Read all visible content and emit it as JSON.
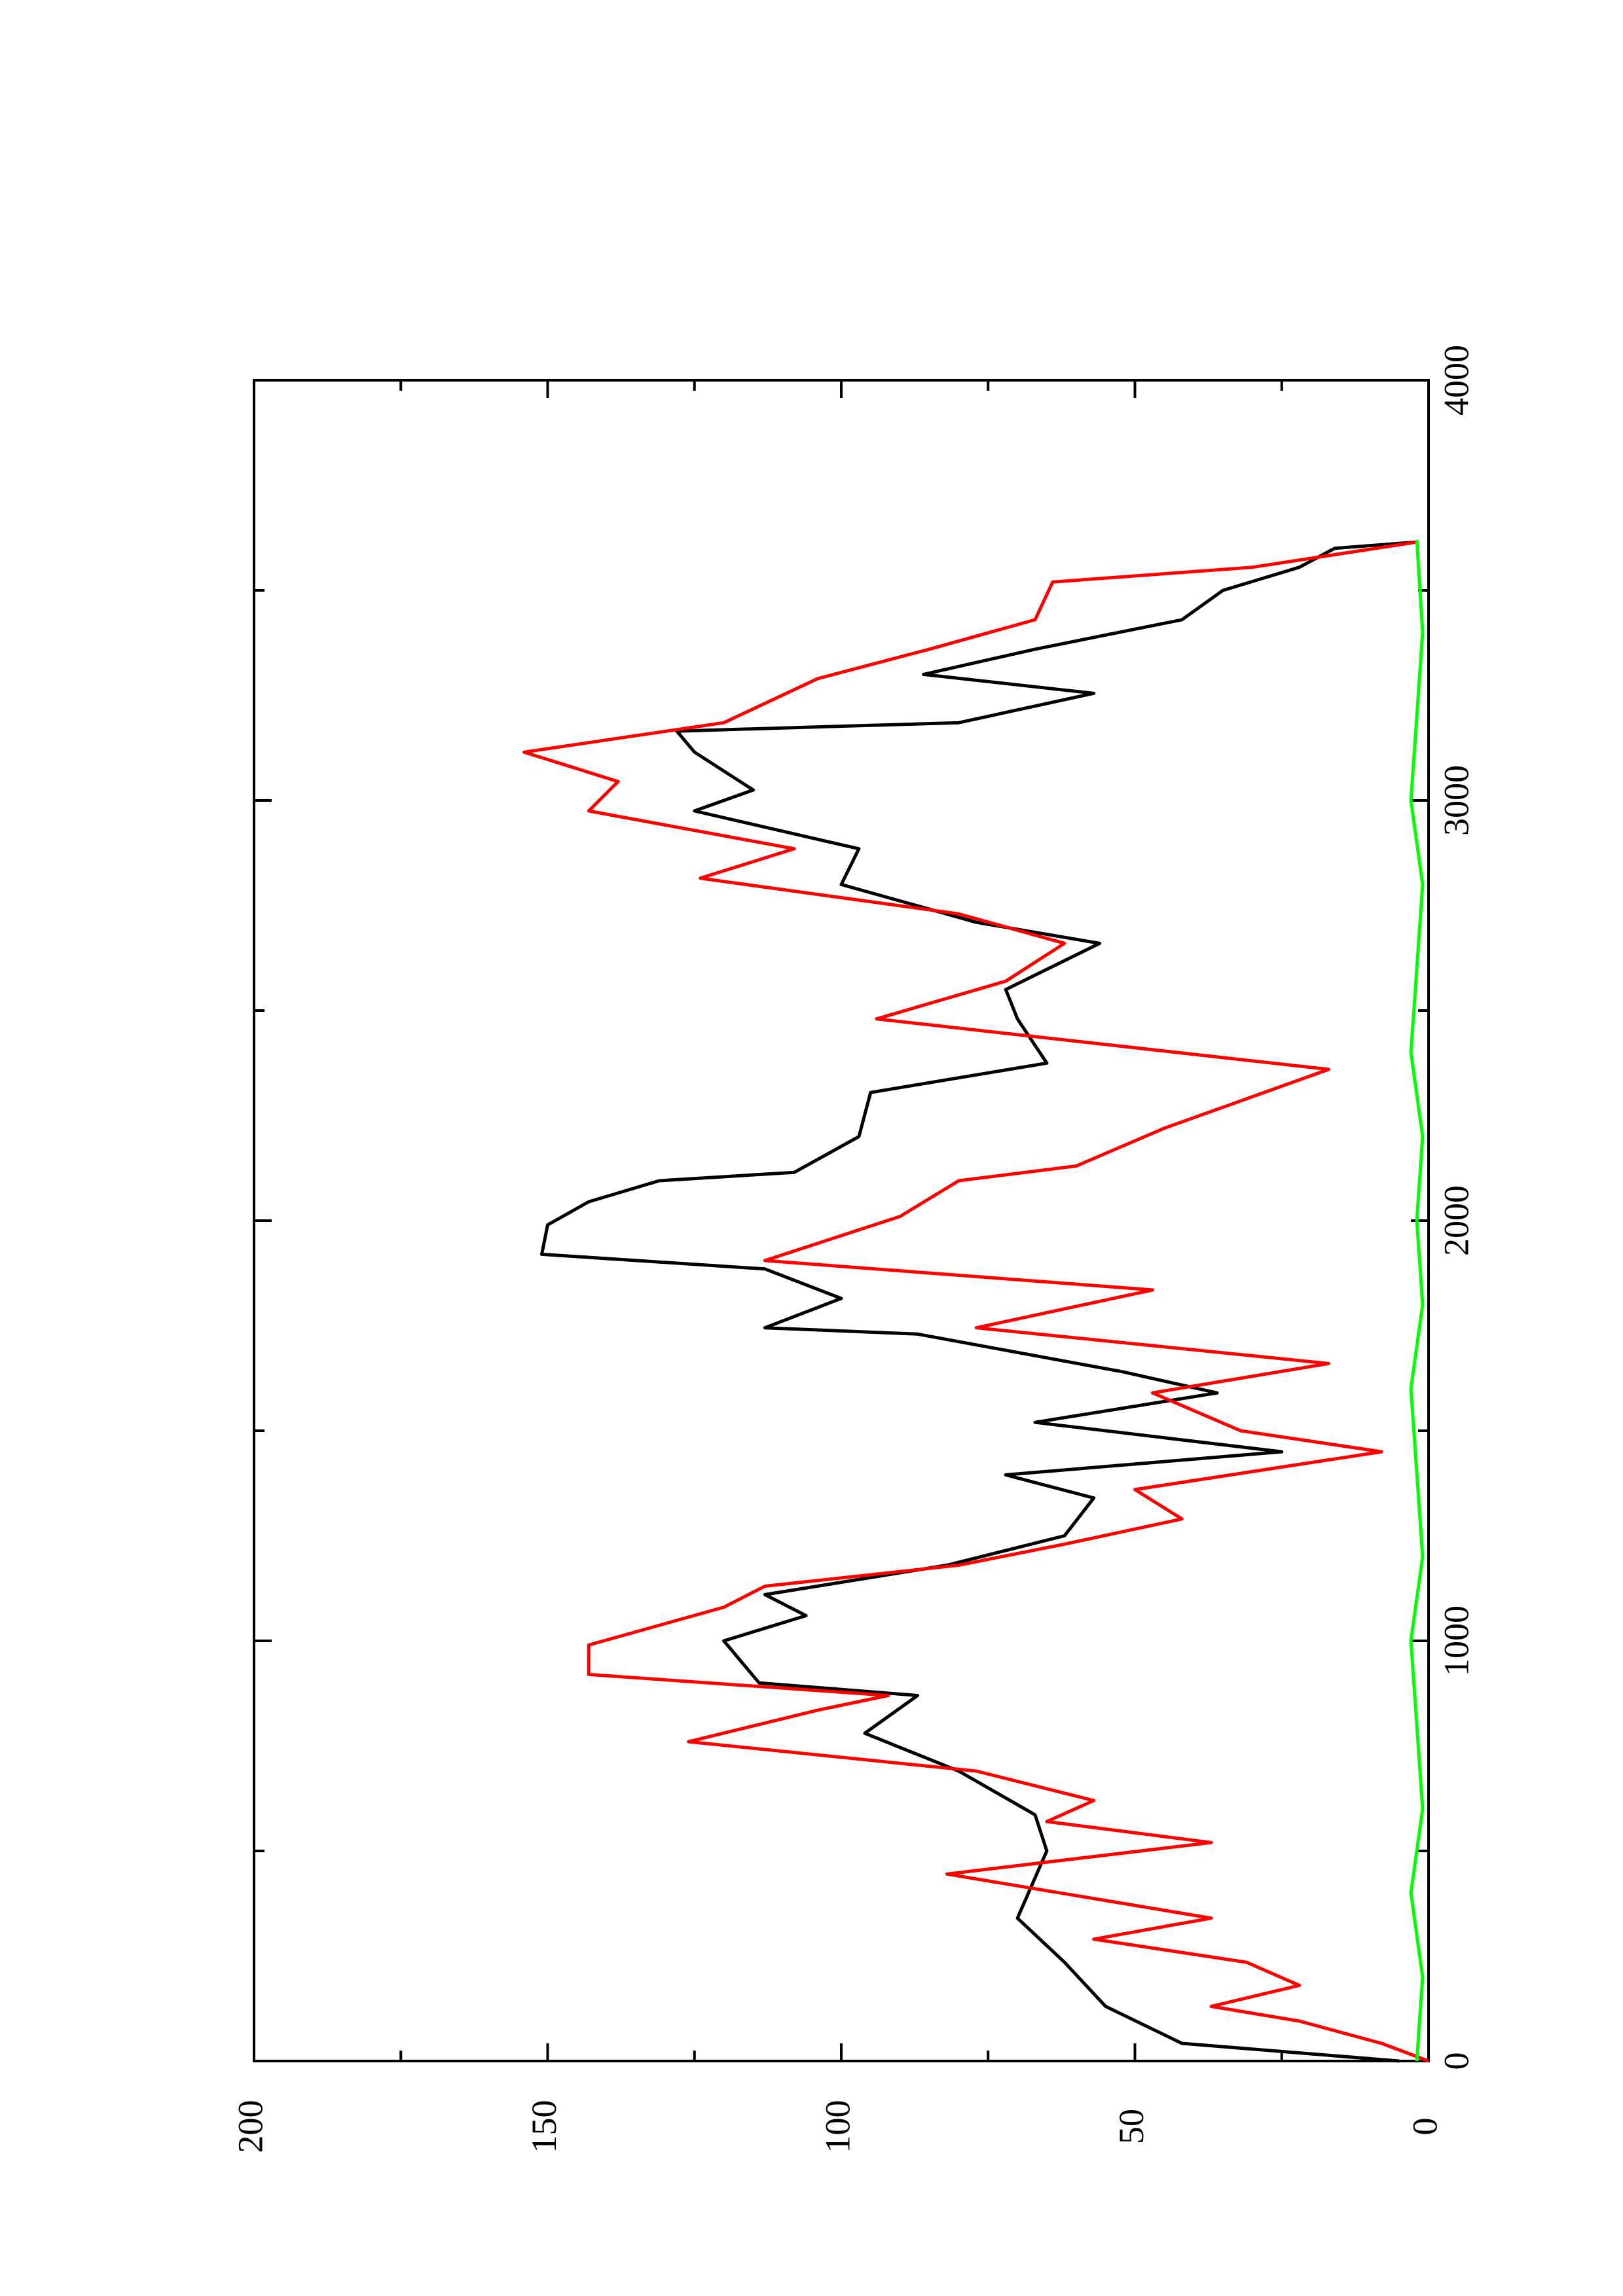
{
  "chart_data": {
    "type": "line",
    "xlim": [
      0,
      4000
    ],
    "xticks": [
      0,
      1000,
      2000,
      3000,
      4000
    ],
    "xminorticks": [
      500,
      1500,
      2500,
      3500
    ],
    "ylim": [
      0,
      200
    ],
    "yticks": [
      0,
      50,
      100,
      150,
      200
    ],
    "yminorticks": [
      25,
      75,
      125,
      175
    ],
    "series": [
      {
        "color": "#000000",
        "x": [
          0,
          42,
          130,
          235,
          340,
          500,
          586,
          690,
          780,
          870,
          900,
          1000,
          1060,
          1110,
          1180,
          1250,
          1340,
          1395,
          1450,
          1520,
          1590,
          1640,
          1730,
          1745,
          1815,
          1885,
          1920,
          1990,
          2045,
          2095,
          2115,
          2200,
          2305,
          2375,
          2480,
          2550,
          2660,
          2710,
          2800,
          2885,
          2975,
          3025,
          3115,
          3165,
          3185,
          3255,
          3300,
          3360,
          3430,
          3500,
          3555,
          3600,
          3615
        ],
        "values": [
          5,
          42,
          55,
          62,
          70,
          65,
          67,
          80,
          96,
          87,
          114,
          120,
          106,
          113,
          82,
          62,
          57,
          72,
          25,
          67,
          36,
          52,
          87,
          113,
          100,
          113,
          151,
          150,
          143,
          131,
          108,
          97,
          95,
          65,
          70,
          72,
          56,
          77,
          100,
          97,
          125,
          115,
          125,
          128,
          80,
          57,
          86,
          67,
          42,
          35,
          22,
          16,
          2
        ]
      },
      {
        "color": "#ff0000",
        "x": [
          0,
          42,
          95,
          130,
          180,
          235,
          290,
          340,
          445,
          520,
          570,
          620,
          690,
          760,
          835,
          870,
          920,
          990,
          1080,
          1130,
          1180,
          1230,
          1290,
          1360,
          1450,
          1500,
          1590,
          1660,
          1745,
          1835,
          1905,
          2010,
          2095,
          2130,
          2220,
          2360,
          2480,
          2570,
          2660,
          2730,
          2815,
          2885,
          2975,
          3045,
          3115,
          3185,
          3290,
          3360,
          3430,
          3520,
          3555,
          3615
        ],
        "values": [
          0,
          8,
          22,
          37,
          22,
          31,
          57,
          37,
          82,
          37,
          65,
          57,
          77,
          126,
          104,
          92,
          143,
          143,
          120,
          113,
          80,
          62,
          42,
          50,
          8,
          32,
          47,
          17,
          77,
          47,
          113,
          90,
          80,
          60,
          45,
          17,
          94,
          72,
          62,
          80,
          124,
          108,
          143,
          138,
          154,
          120,
          104,
          85,
          67,
          64,
          30,
          2
        ]
      },
      {
        "color": "#00ff00",
        "x": [
          0,
          200,
          400,
          600,
          800,
          1000,
          1200,
          1400,
          1600,
          1800,
          2000,
          2200,
          2400,
          2600,
          2800,
          3000,
          3200,
          3400,
          3620
        ],
        "values": [
          2,
          1,
          3,
          1,
          2,
          3,
          1,
          2,
          3,
          1,
          2,
          1,
          3,
          2,
          1,
          3,
          2,
          1,
          2
        ]
      }
    ]
  }
}
